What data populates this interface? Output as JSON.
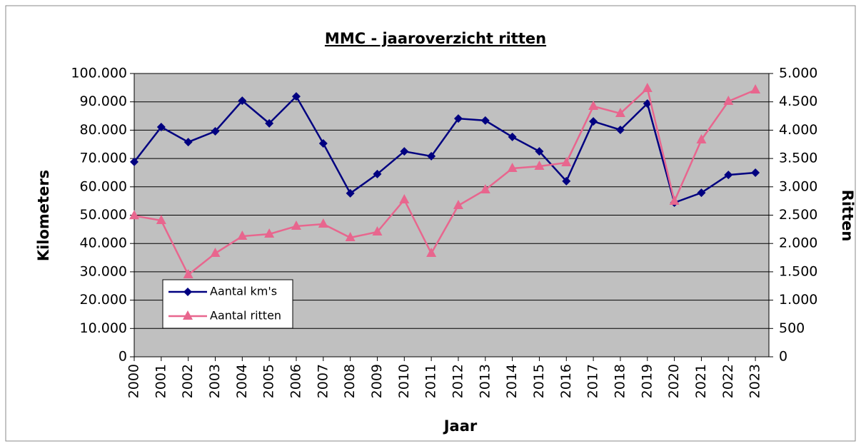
{
  "chart_data": {
    "type": "line",
    "title": "MMC - jaaroverzicht ritten",
    "x_label": "Jaar",
    "y_label": "Kilometers",
    "y2_label": "Ritten",
    "categories": [
      "2000",
      "2001",
      "2002",
      "2003",
      "2004",
      "2005",
      "2006",
      "2007",
      "2008",
      "2009",
      "2010",
      "2011",
      "2012",
      "2013",
      "2014",
      "2015",
      "2016",
      "2017",
      "2018",
      "2019",
      "2020",
      "2021",
      "2022",
      "2023"
    ],
    "series": [
      {
        "name": "Aantal km's",
        "color": "#000080",
        "marker": "diamond",
        "axis": "y",
        "values": [
          68800,
          81100,
          75800,
          79600,
          90400,
          82400,
          91900,
          75300,
          57700,
          64500,
          72500,
          70800,
          84100,
          83400,
          77600,
          72500,
          62000,
          83100,
          80100,
          89400,
          54400,
          57900,
          64200,
          65000
        ]
      },
      {
        "name": "Aantal ritten",
        "color": "#e8668e",
        "marker": "triangle",
        "axis": "y2",
        "values": [
          2490,
          2405,
          1448,
          1826,
          2128,
          2166,
          2305,
          2343,
          2103,
          2204,
          2771,
          1826,
          2670,
          2947,
          3325,
          3363,
          3426,
          4421,
          4295,
          4736,
          2746,
          3829,
          4509,
          4710
        ]
      }
    ],
    "ylim": [
      0,
      100000
    ],
    "yticks": [
      0,
      {
        "value": 10000,
        "label": "10.000"
      },
      {
        "value": 20000,
        "label": "20.000"
      },
      {
        "value": 30000,
        "label": "30.000"
      },
      {
        "value": 40000,
        "label": "40.000"
      },
      {
        "value": 50000,
        "label": "50.000"
      },
      {
        "value": 60000,
        "label": "60.000"
      },
      {
        "value": 70000,
        "label": "70.000"
      },
      {
        "value": 80000,
        "label": "80.000"
      },
      {
        "value": 90000,
        "label": "90.000"
      },
      {
        "value": 100000,
        "label": "100.000"
      }
    ],
    "y2lim": [
      0,
      5000
    ],
    "y2ticks": [
      0,
      500,
      {
        "value": 1000,
        "label": "1.000"
      },
      {
        "value": 1500,
        "label": "1.500"
      },
      {
        "value": 2000,
        "label": "2.000"
      },
      {
        "value": 2500,
        "label": "2.500"
      },
      {
        "value": 3000,
        "label": "3.000"
      },
      {
        "value": 3500,
        "label": "3.500"
      },
      {
        "value": 4000,
        "label": "4.000"
      },
      {
        "value": 4500,
        "label": "4.500"
      },
      {
        "value": 5000,
        "label": "5.000"
      }
    ],
    "grid": true,
    "legend": "lower left",
    "plot_background": "#c0c0c0"
  }
}
